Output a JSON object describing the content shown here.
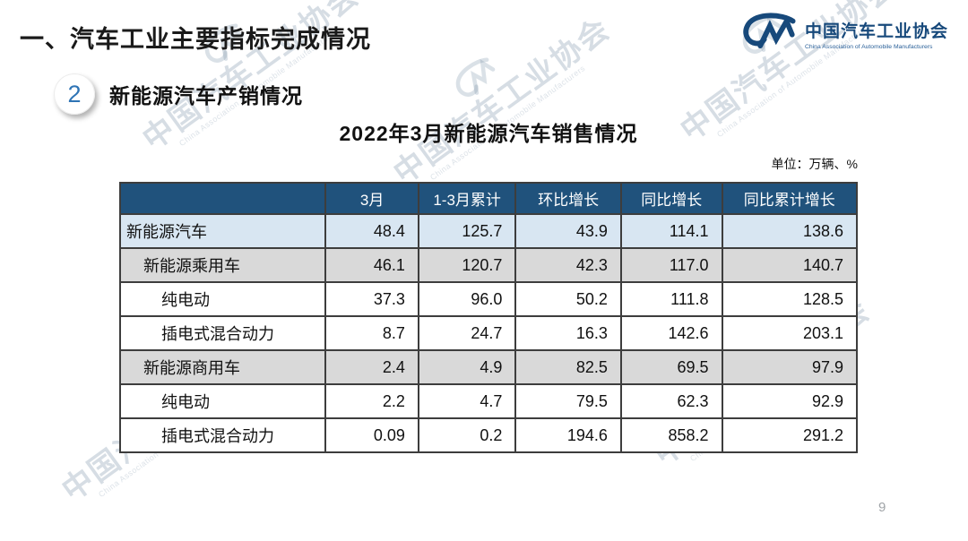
{
  "page": {
    "title": "一、汽车工业主要指标完成情况",
    "page_number": "9"
  },
  "logo": {
    "name_cn": "中国汽车工业协会",
    "name_en": "China Association of Automobile Manufacturers"
  },
  "section": {
    "badge": "2",
    "title": "新能源汽车产销情况"
  },
  "table_title": "2022年3月新能源汽车销售情况",
  "unit_label": "单位：万辆、%",
  "watermark": {
    "text_cn": "中国汽车工业协会",
    "text_en": "China Association of Automobile Manufacturers"
  },
  "colors": {
    "header_bg": "#20527c",
    "row_blue": "#d8e6f2",
    "row_gray": "#d9d9d9",
    "brand_blue": "#17497b",
    "badge_number_blue": "#2e74b5",
    "border": "#3d3d3d"
  },
  "table": {
    "columns": [
      "",
      "3月",
      "1-3月累计",
      "环比增长",
      "同比增长",
      "同比累计增长"
    ],
    "rows": [
      {
        "label": "新能源汽车",
        "indent": 0,
        "values": [
          "48.4",
          "125.7",
          "43.9",
          "114.1",
          "138.6"
        ]
      },
      {
        "label": "新能源乘用车",
        "indent": 1,
        "values": [
          "46.1",
          "120.7",
          "42.3",
          "117.0",
          "140.7"
        ]
      },
      {
        "label": "纯电动",
        "indent": 2,
        "values": [
          "37.3",
          "96.0",
          "50.2",
          "111.8",
          "128.5"
        ]
      },
      {
        "label": "插电式混合动力",
        "indent": 2,
        "values": [
          "8.7",
          "24.7",
          "16.3",
          "142.6",
          "203.1"
        ]
      },
      {
        "label": "新能源商用车",
        "indent": 1,
        "values": [
          "2.4",
          "4.9",
          "82.5",
          "69.5",
          "97.9"
        ]
      },
      {
        "label": "纯电动",
        "indent": 2,
        "values": [
          "2.2",
          "4.7",
          "79.5",
          "62.3",
          "92.9"
        ]
      },
      {
        "label": "插电式混合动力",
        "indent": 2,
        "values": [
          "0.09",
          "0.2",
          "194.6",
          "858.2",
          "291.2"
        ]
      }
    ]
  }
}
